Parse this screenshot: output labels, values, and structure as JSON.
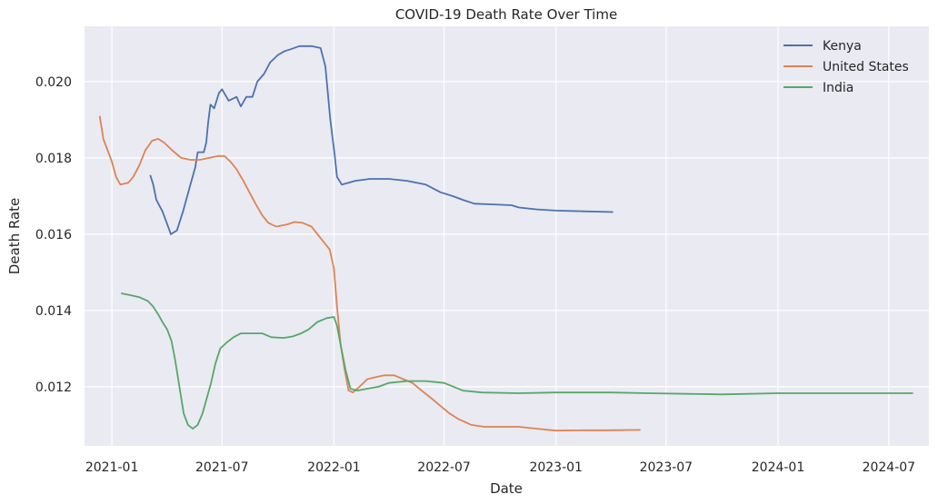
{
  "chart_data": {
    "type": "line",
    "title": "COVID-19 Death Rate Over Time",
    "xlabel": "Date",
    "ylabel": "Death Rate",
    "x_ticks": [
      "2021-01",
      "2021-07",
      "2022-01",
      "2022-07",
      "2023-01",
      "2023-07",
      "2024-01",
      "2024-07"
    ],
    "y_ticks": [
      0.012,
      0.014,
      0.016,
      0.018,
      0.02
    ],
    "xlim": [
      "2020-11-17",
      "2024-09-05"
    ],
    "ylim": [
      0.01045,
      0.02145
    ],
    "grid": true,
    "legend_position": "top-right",
    "series": [
      {
        "name": "Kenya",
        "color": "#4c72b0",
        "points": [
          [
            "2021-03-05",
            0.01755
          ],
          [
            "2021-03-10",
            0.0173
          ],
          [
            "2021-03-15",
            0.0169
          ],
          [
            "2021-03-25",
            0.0166
          ],
          [
            "2021-04-01",
            0.0163
          ],
          [
            "2021-04-08",
            0.016
          ],
          [
            "2021-04-18",
            0.0161
          ],
          [
            "2021-04-28",
            0.0166
          ],
          [
            "2021-05-10",
            0.0173
          ],
          [
            "2021-05-18",
            0.01775
          ],
          [
            "2021-05-22",
            0.01815
          ],
          [
            "2021-06-01",
            0.01815
          ],
          [
            "2021-06-05",
            0.0184
          ],
          [
            "2021-06-08",
            0.0189
          ],
          [
            "2021-06-12",
            0.0194
          ],
          [
            "2021-06-18",
            0.0193
          ],
          [
            "2021-06-26",
            0.0197
          ],
          [
            "2021-07-01",
            0.0198
          ],
          [
            "2021-07-12",
            0.0195
          ],
          [
            "2021-07-25",
            0.0196
          ],
          [
            "2021-08-01",
            0.01935
          ],
          [
            "2021-08-10",
            0.0196
          ],
          [
            "2021-08-20",
            0.0196
          ],
          [
            "2021-08-28",
            0.02
          ],
          [
            "2021-09-08",
            0.0202
          ],
          [
            "2021-09-18",
            0.0205
          ],
          [
            "2021-10-01",
            0.0207
          ],
          [
            "2021-10-12",
            0.0208
          ],
          [
            "2021-10-22",
            0.02085
          ],
          [
            "2021-11-05",
            0.02093
          ],
          [
            "2021-11-25",
            0.02093
          ],
          [
            "2021-12-10",
            0.02088
          ],
          [
            "2021-12-18",
            0.0204
          ],
          [
            "2021-12-26",
            0.019
          ],
          [
            "2022-01-02",
            0.0181
          ],
          [
            "2022-01-06",
            0.0175
          ],
          [
            "2022-01-14",
            0.0173
          ],
          [
            "2022-01-25",
            0.01735
          ],
          [
            "2022-02-05",
            0.0174
          ],
          [
            "2022-03-01",
            0.01745
          ],
          [
            "2022-04-01",
            0.01745
          ],
          [
            "2022-05-01",
            0.0174
          ],
          [
            "2022-06-01",
            0.0173
          ],
          [
            "2022-06-25",
            0.0171
          ],
          [
            "2022-07-15",
            0.017
          ],
          [
            "2022-08-01",
            0.0169
          ],
          [
            "2022-08-20",
            0.0168
          ],
          [
            "2022-09-20",
            0.01678
          ],
          [
            "2022-10-20",
            0.01676
          ],
          [
            "2022-11-01",
            0.0167
          ],
          [
            "2022-12-01",
            0.01665
          ],
          [
            "2023-01-01",
            0.01662
          ],
          [
            "2023-02-15",
            0.0166
          ],
          [
            "2023-04-05",
            0.01658
          ]
        ]
      },
      {
        "name": "United States",
        "color": "#dd8452",
        "points": [
          [
            "2020-12-12",
            0.0191
          ],
          [
            "2020-12-18",
            0.0185
          ],
          [
            "2020-12-25",
            0.0182
          ],
          [
            "2021-01-01",
            0.0179
          ],
          [
            "2021-01-08",
            0.0175
          ],
          [
            "2021-01-15",
            0.0173
          ],
          [
            "2021-01-28",
            0.01735
          ],
          [
            "2021-02-05",
            0.0175
          ],
          [
            "2021-02-15",
            0.0178
          ],
          [
            "2021-02-25",
            0.0182
          ],
          [
            "2021-03-08",
            0.01845
          ],
          [
            "2021-03-18",
            0.0185
          ],
          [
            "2021-03-28",
            0.0184
          ],
          [
            "2021-04-10",
            0.0182
          ],
          [
            "2021-04-25",
            0.018
          ],
          [
            "2021-05-10",
            0.01795
          ],
          [
            "2021-05-25",
            0.01795
          ],
          [
            "2021-06-10",
            0.018
          ],
          [
            "2021-06-25",
            0.01805
          ],
          [
            "2021-07-05",
            0.01805
          ],
          [
            "2021-07-15",
            0.0179
          ],
          [
            "2021-07-25",
            0.0177
          ],
          [
            "2021-08-05",
            0.0174
          ],
          [
            "2021-08-15",
            0.0171
          ],
          [
            "2021-08-25",
            0.0168
          ],
          [
            "2021-09-05",
            0.0165
          ],
          [
            "2021-09-15",
            0.0163
          ],
          [
            "2021-09-28",
            0.0162
          ],
          [
            "2021-10-15",
            0.01625
          ],
          [
            "2021-10-28",
            0.01632
          ],
          [
            "2021-11-10",
            0.0163
          ],
          [
            "2021-11-25",
            0.0162
          ],
          [
            "2021-12-05",
            0.016
          ],
          [
            "2021-12-15",
            0.0158
          ],
          [
            "2021-12-25",
            0.0156
          ],
          [
            "2022-01-01",
            0.0151
          ],
          [
            "2022-01-06",
            0.0141
          ],
          [
            "2022-01-12",
            0.0131
          ],
          [
            "2022-01-18",
            0.0125
          ],
          [
            "2022-01-25",
            0.0119
          ],
          [
            "2022-02-01",
            0.01185
          ],
          [
            "2022-02-12",
            0.012
          ],
          [
            "2022-02-25",
            0.0122
          ],
          [
            "2022-03-10",
            0.01225
          ],
          [
            "2022-03-25",
            0.0123
          ],
          [
            "2022-04-10",
            0.0123
          ],
          [
            "2022-04-25",
            0.0122
          ],
          [
            "2022-05-10",
            0.0121
          ],
          [
            "2022-05-25",
            0.0119
          ],
          [
            "2022-06-10",
            0.0117
          ],
          [
            "2022-06-25",
            0.0115
          ],
          [
            "2022-07-10",
            0.0113
          ],
          [
            "2022-07-25",
            0.01115
          ],
          [
            "2022-08-15",
            0.011
          ],
          [
            "2022-09-05",
            0.01095
          ],
          [
            "2022-10-01",
            0.01095
          ],
          [
            "2022-11-01",
            0.01095
          ],
          [
            "2022-12-01",
            0.0109
          ],
          [
            "2023-01-01",
            0.01085
          ],
          [
            "2023-02-15",
            0.01086
          ],
          [
            "2023-04-01",
            0.01086
          ],
          [
            "2023-05-20",
            0.01087
          ]
        ]
      },
      {
        "name": "India",
        "color": "#55a868",
        "points": [
          [
            "2021-01-16",
            0.01445
          ],
          [
            "2021-02-01",
            0.0144
          ],
          [
            "2021-02-15",
            0.01435
          ],
          [
            "2021-03-01",
            0.01425
          ],
          [
            "2021-03-10",
            0.0141
          ],
          [
            "2021-03-18",
            0.0139
          ],
          [
            "2021-03-25",
            0.0137
          ],
          [
            "2021-04-02",
            0.0135
          ],
          [
            "2021-04-09",
            0.0132
          ],
          [
            "2021-04-15",
            0.0127
          ],
          [
            "2021-04-22",
            0.012
          ],
          [
            "2021-04-29",
            0.0113
          ],
          [
            "2021-05-06",
            0.011
          ],
          [
            "2021-05-14",
            0.0109
          ],
          [
            "2021-05-22",
            0.011
          ],
          [
            "2021-05-30",
            0.0113
          ],
          [
            "2021-06-06",
            0.0117
          ],
          [
            "2021-06-13",
            0.0121
          ],
          [
            "2021-06-20",
            0.0126
          ],
          [
            "2021-06-28",
            0.013
          ],
          [
            "2021-07-08",
            0.01315
          ],
          [
            "2021-07-20",
            0.0133
          ],
          [
            "2021-08-01",
            0.0134
          ],
          [
            "2021-08-20",
            0.0134
          ],
          [
            "2021-09-05",
            0.0134
          ],
          [
            "2021-09-20",
            0.0133
          ],
          [
            "2021-10-10",
            0.01328
          ],
          [
            "2021-10-25",
            0.01332
          ],
          [
            "2021-11-08",
            0.0134
          ],
          [
            "2021-11-20",
            0.0135
          ],
          [
            "2021-12-05",
            0.0137
          ],
          [
            "2021-12-20",
            0.0138
          ],
          [
            "2022-01-01",
            0.01383
          ],
          [
            "2022-01-06",
            0.0136
          ],
          [
            "2022-01-12",
            0.0131
          ],
          [
            "2022-01-20",
            0.01245
          ],
          [
            "2022-01-28",
            0.01195
          ],
          [
            "2022-02-08",
            0.0119
          ],
          [
            "2022-02-25",
            0.01195
          ],
          [
            "2022-03-15",
            0.012
          ],
          [
            "2022-04-01",
            0.0121
          ],
          [
            "2022-05-01",
            0.01215
          ],
          [
            "2022-06-01",
            0.01215
          ],
          [
            "2022-07-01",
            0.0121
          ],
          [
            "2022-08-01",
            0.0119
          ],
          [
            "2022-09-01",
            0.01185
          ],
          [
            "2022-11-01",
            0.01183
          ],
          [
            "2023-01-01",
            0.01185
          ],
          [
            "2023-04-01",
            0.01185
          ],
          [
            "2023-06-01",
            0.01183
          ],
          [
            "2023-10-01",
            0.0118
          ],
          [
            "2024-01-01",
            0.01183
          ],
          [
            "2024-04-01",
            0.01183
          ],
          [
            "2024-08-10",
            0.01183
          ]
        ]
      }
    ]
  }
}
